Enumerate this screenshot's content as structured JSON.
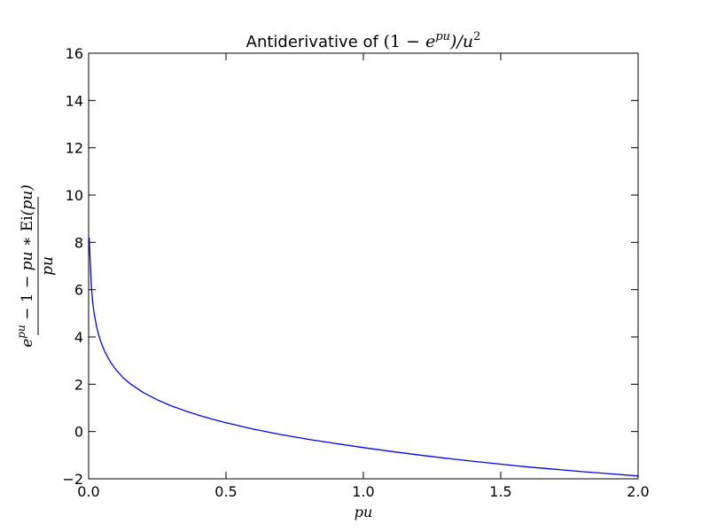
{
  "chart_data": {
    "type": "line",
    "title": {
      "prefix": "Antiderivative of ",
      "math": "(1 − e^{pu})/u^2",
      "open_one_minus": "(1 − ",
      "e": "e",
      "pu": "pu",
      "close_over_u": ")/u",
      "sq": "2"
    },
    "xlabel": "pu",
    "ylabel": {
      "numerator_e": "e",
      "numerator_pu_sup": "pu",
      "numerator_rest": " − 1 − ",
      "numerator_pu": "pu",
      "numerator_mid": " ∗ ",
      "numerator_Ei": "Ei",
      "numerator_arg": "(pu)",
      "denominator": "pu"
    },
    "xlim": [
      0.0,
      2.0
    ],
    "ylim": [
      -2,
      16
    ],
    "xticks": [
      "0.0",
      "0.5",
      "1.0",
      "1.5",
      "2.0"
    ],
    "yticks": [
      "−2",
      "0",
      "2",
      "4",
      "6",
      "8",
      "10",
      "12",
      "14",
      "16"
    ],
    "series": [
      {
        "color": "#0000ff",
        "x": [
          0.002,
          0.005,
          0.01,
          0.015,
          0.02,
          0.03,
          0.04,
          0.05,
          0.06,
          0.08,
          0.1,
          0.125,
          0.15,
          0.2,
          0.25,
          0.3,
          0.35,
          0.4,
          0.45,
          0.5,
          0.6,
          0.7,
          0.8,
          0.9,
          1.0,
          1.1,
          1.2,
          1.3,
          1.4,
          1.5,
          1.6,
          1.7,
          1.8,
          1.9,
          2.0
        ],
        "y": [
          8.2,
          7.4,
          6.11,
          5.45,
          5.0,
          4.38,
          3.95,
          3.62,
          3.35,
          2.93,
          2.61,
          2.28,
          2.03,
          1.64,
          1.34,
          1.09,
          0.88,
          0.69,
          0.52,
          0.37,
          0.1,
          -0.13,
          -0.33,
          -0.51,
          -0.68,
          -0.84,
          -0.99,
          -1.13,
          -1.26,
          -1.38,
          -1.5,
          -1.6,
          -1.7,
          -1.79,
          -1.88
        ]
      }
    ],
    "grid": false,
    "legend": "none"
  }
}
